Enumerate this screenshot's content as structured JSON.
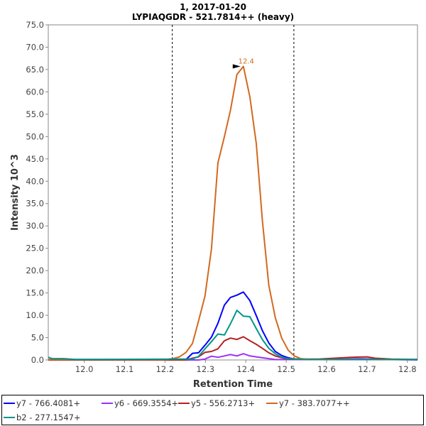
{
  "chart_data": {
    "type": "line",
    "title": "1, 2017-01-20",
    "subtitle": "LYPIAQGDR - 521.7814++ (heavy)",
    "xlabel": "Retention Time",
    "ylabel": "Intensity 10^3",
    "xlim": [
      11.911,
      12.825
    ],
    "ylim": [
      0,
      75
    ],
    "xticks": [
      "12.0",
      "12.1",
      "12.2",
      "12.3",
      "12.4",
      "12.5",
      "12.6",
      "12.7",
      "12.8"
    ],
    "yticks": [
      "0.0",
      "5.0",
      "10.0",
      "15.0",
      "20.0",
      "25.0",
      "30.0",
      "35.0",
      "40.0",
      "45.0",
      "50.0",
      "55.0",
      "60.0",
      "65.0",
      "70.0",
      "75.0"
    ],
    "grid": false,
    "boundaries": [
      12.218,
      12.519
    ],
    "peak_annotation": {
      "x": 12.394,
      "y": 65.7,
      "label": "12.4",
      "color": "#d2691e"
    },
    "legend_position": "bottom",
    "series": [
      {
        "name": "y7 - 766.4081+",
        "color": "#0000ff",
        "points": [
          [
            11.911,
            0.1
          ],
          [
            12.2,
            0.1
          ],
          [
            12.252,
            0.1
          ],
          [
            12.268,
            1.5
          ],
          [
            12.283,
            1.6
          ],
          [
            12.299,
            3.3
          ],
          [
            12.315,
            5.1
          ],
          [
            12.331,
            8.2
          ],
          [
            12.347,
            12.3
          ],
          [
            12.362,
            14.0
          ],
          [
            12.378,
            14.5
          ],
          [
            12.394,
            15.2
          ],
          [
            12.41,
            13.3
          ],
          [
            12.426,
            9.9
          ],
          [
            12.441,
            6.6
          ],
          [
            12.457,
            3.8
          ],
          [
            12.473,
            1.9
          ],
          [
            12.489,
            1.0
          ],
          [
            12.505,
            0.5
          ],
          [
            12.52,
            0.2
          ],
          [
            12.6,
            0.1
          ],
          [
            12.825,
            0.1
          ]
        ]
      },
      {
        "name": "y6 - 669.3554+",
        "color": "#9b30ff",
        "points": [
          [
            11.911,
            0.0
          ],
          [
            12.283,
            0.0
          ],
          [
            12.299,
            0.2
          ],
          [
            12.315,
            0.85
          ],
          [
            12.331,
            0.6
          ],
          [
            12.347,
            0.9
          ],
          [
            12.362,
            1.2
          ],
          [
            12.378,
            0.9
          ],
          [
            12.394,
            1.4
          ],
          [
            12.41,
            0.9
          ],
          [
            12.426,
            0.7
          ],
          [
            12.441,
            0.5
          ],
          [
            12.457,
            0.3
          ],
          [
            12.473,
            0.1
          ],
          [
            12.6,
            0.1
          ],
          [
            12.68,
            0.3
          ],
          [
            12.75,
            0.1
          ],
          [
            12.825,
            0.0
          ]
        ]
      },
      {
        "name": "y5 - 556.2713+",
        "color": "#b22222",
        "points": [
          [
            11.911,
            0.0
          ],
          [
            12.252,
            0.0
          ],
          [
            12.268,
            0.4
          ],
          [
            12.283,
            0.7
          ],
          [
            12.299,
            1.7
          ],
          [
            12.315,
            1.9
          ],
          [
            12.331,
            2.5
          ],
          [
            12.347,
            4.3
          ],
          [
            12.362,
            4.9
          ],
          [
            12.378,
            4.6
          ],
          [
            12.394,
            5.2
          ],
          [
            12.41,
            4.3
          ],
          [
            12.426,
            3.5
          ],
          [
            12.441,
            2.6
          ],
          [
            12.457,
            1.6
          ],
          [
            12.473,
            0.9
          ],
          [
            12.489,
            0.5
          ],
          [
            12.505,
            0.2
          ],
          [
            12.58,
            0.2
          ],
          [
            12.62,
            0.4
          ],
          [
            12.66,
            0.6
          ],
          [
            12.7,
            0.7
          ],
          [
            12.72,
            0.4
          ],
          [
            12.76,
            0.2
          ],
          [
            12.825,
            0.1
          ]
        ]
      },
      {
        "name": "y7 - 383.7077++",
        "color": "#d2691e",
        "points": [
          [
            11.911,
            0.1
          ],
          [
            12.2,
            0.1
          ],
          [
            12.22,
            0.3
          ],
          [
            12.236,
            0.7
          ],
          [
            12.252,
            1.7
          ],
          [
            12.268,
            3.7
          ],
          [
            12.283,
            8.7
          ],
          [
            12.299,
            14.3
          ],
          [
            12.315,
            24.8
          ],
          [
            12.331,
            44.1
          ],
          [
            12.347,
            50.0
          ],
          [
            12.362,
            55.9
          ],
          [
            12.378,
            63.9
          ],
          [
            12.394,
            65.7
          ],
          [
            12.41,
            58.9
          ],
          [
            12.426,
            48.4
          ],
          [
            12.441,
            31.3
          ],
          [
            12.457,
            16.7
          ],
          [
            12.473,
            9.5
          ],
          [
            12.489,
            4.9
          ],
          [
            12.505,
            2.2
          ],
          [
            12.52,
            0.9
          ],
          [
            12.536,
            0.3
          ],
          [
            12.56,
            0.1
          ],
          [
            12.825,
            0.1
          ]
        ]
      },
      {
        "name": "b2 - 277.1547+",
        "color": "#009688",
        "points": [
          [
            11.911,
            0.6
          ],
          [
            11.92,
            0.3
          ],
          [
            11.95,
            0.3
          ],
          [
            11.98,
            0.1
          ],
          [
            12.268,
            0.2
          ],
          [
            12.283,
            0.8
          ],
          [
            12.299,
            2.5
          ],
          [
            12.315,
            4.1
          ],
          [
            12.331,
            5.8
          ],
          [
            12.347,
            5.6
          ],
          [
            12.362,
            8.1
          ],
          [
            12.378,
            11.1
          ],
          [
            12.394,
            9.8
          ],
          [
            12.41,
            9.7
          ],
          [
            12.426,
            7.0
          ],
          [
            12.441,
            4.6
          ],
          [
            12.457,
            2.6
          ],
          [
            12.473,
            1.4
          ],
          [
            12.489,
            0.6
          ],
          [
            12.505,
            0.3
          ],
          [
            12.55,
            0.1
          ],
          [
            12.825,
            0.1
          ]
        ]
      }
    ]
  }
}
